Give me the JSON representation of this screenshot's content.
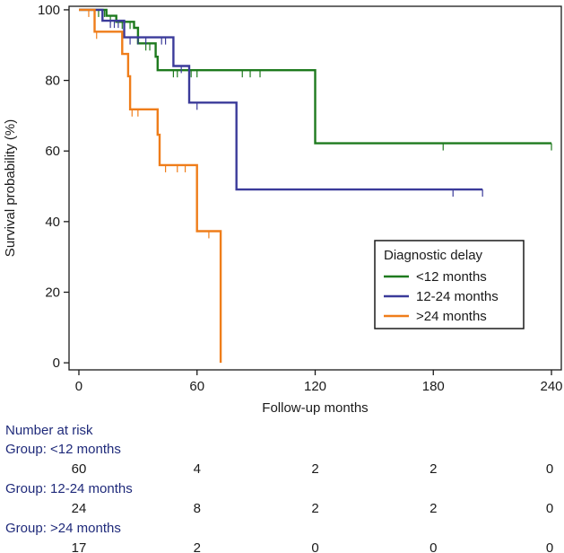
{
  "chart_data": {
    "type": "line",
    "title": "",
    "xlabel": "Follow-up months",
    "ylabel": "Survival probability (%)",
    "xlim": [
      -5,
      245
    ],
    "ylim": [
      -2,
      101
    ],
    "xticks": [
      0,
      60,
      120,
      180,
      240
    ],
    "yticks": [
      0,
      20,
      40,
      60,
      80,
      100
    ],
    "legend": {
      "title": "Diagnostic delay",
      "position": "center-right"
    },
    "series": [
      {
        "name": "<12 months",
        "color": "#1e7a1e",
        "steps": [
          [
            0,
            100
          ],
          [
            14,
            100
          ],
          [
            14,
            98.3
          ],
          [
            19,
            98.3
          ],
          [
            19,
            96.6
          ],
          [
            28,
            96.6
          ],
          [
            28,
            94.9
          ],
          [
            30,
            94.9
          ],
          [
            30,
            90.5
          ],
          [
            39,
            90.5
          ],
          [
            39,
            86.7
          ],
          [
            40,
            86.7
          ],
          [
            40,
            82.9
          ],
          [
            120,
            82.9
          ],
          [
            120,
            62.2
          ],
          [
            240,
            62.2
          ]
        ],
        "censor": [
          8,
          10,
          13,
          16,
          22,
          26,
          34,
          36,
          48,
          50,
          57,
          60,
          83,
          87,
          92,
          185,
          240
        ]
      },
      {
        "name": "12-24 months",
        "color": "#3b3b9a",
        "steps": [
          [
            0,
            100
          ],
          [
            12,
            100
          ],
          [
            12,
            96.9
          ],
          [
            23,
            96.9
          ],
          [
            23,
            92.2
          ],
          [
            48,
            92.2
          ],
          [
            48,
            84.1
          ],
          [
            56,
            84.1
          ],
          [
            56,
            73.7
          ],
          [
            80,
            73.7
          ],
          [
            80,
            49.1
          ],
          [
            205,
            49.1
          ]
        ],
        "censor": [
          16,
          18,
          20,
          26,
          30,
          34,
          42,
          44,
          52,
          60,
          190,
          205
        ]
      },
      {
        "name": ">24 months",
        "color": "#ef7d1a",
        "steps": [
          [
            0,
            100
          ],
          [
            8,
            100
          ],
          [
            8,
            93.8
          ],
          [
            22,
            93.8
          ],
          [
            22,
            87.5
          ],
          [
            25,
            87.5
          ],
          [
            25,
            81.2
          ],
          [
            26,
            81.2
          ],
          [
            26,
            71.8
          ],
          [
            40,
            71.8
          ],
          [
            40,
            64.6
          ],
          [
            41,
            64.6
          ],
          [
            41,
            56
          ],
          [
            60,
            56
          ],
          [
            60,
            37.3
          ],
          [
            72,
            37.3
          ],
          [
            72,
            0
          ]
        ],
        "censor": [
          5,
          9,
          27,
          30,
          44,
          50,
          54,
          66
        ]
      }
    ],
    "risk_table": {
      "title": "Number at risk",
      "times": [
        0,
        60,
        120,
        180,
        240
      ],
      "groups": [
        {
          "label": "Group: <12 months",
          "values": [
            "60",
            "4",
            "2",
            "2",
            "0"
          ]
        },
        {
          "label": "Group: 12-24 months",
          "values": [
            "24",
            "8",
            "2",
            "2",
            "0"
          ]
        },
        {
          "label": "Group: >24 months",
          "values": [
            "17",
            "2",
            "0",
            "0",
            "0"
          ]
        }
      ]
    }
  }
}
